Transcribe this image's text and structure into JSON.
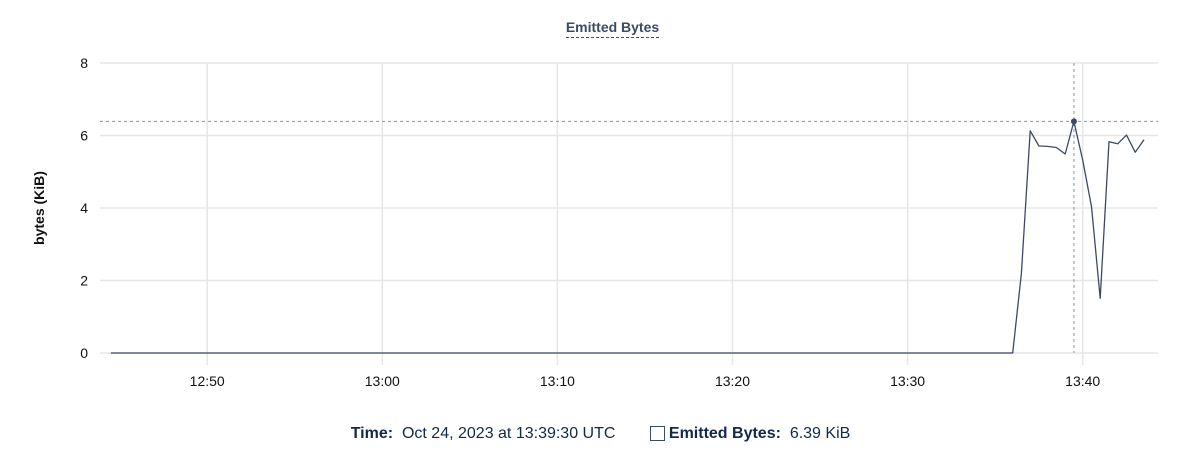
{
  "chart_data": {
    "type": "line",
    "title": "Emitted Bytes",
    "ylabel": "bytes (KiB)",
    "xlabel": "",
    "ylim": [
      0,
      8
    ],
    "yticks": [
      "0",
      "2",
      "4",
      "6",
      "8"
    ],
    "xticks": [
      "12:50",
      "13:00",
      "13:10",
      "13:20",
      "13:30",
      "13:40"
    ],
    "grid": true,
    "color": "#3d4a63",
    "series": [
      {
        "name": "Emitted Bytes",
        "points": [
          [
            "12:44:30",
            0
          ],
          [
            "13:36:00",
            0
          ],
          [
            "13:36:30",
            2.2
          ],
          [
            "13:37:00",
            6.13
          ],
          [
            "13:37:30",
            5.71
          ],
          [
            "13:38:00",
            5.7
          ],
          [
            "13:38:30",
            5.67
          ],
          [
            "13:39:00",
            5.49
          ],
          [
            "13:39:30",
            6.39
          ],
          [
            "13:40:00",
            5.32
          ],
          [
            "13:40:30",
            4.04
          ],
          [
            "13:41:00",
            1.51
          ],
          [
            "13:41:30",
            5.83
          ],
          [
            "13:42:00",
            5.77
          ],
          [
            "13:42:30",
            6.01
          ],
          [
            "13:43:00",
            5.54
          ],
          [
            "13:43:30",
            5.88
          ]
        ]
      }
    ],
    "hover": {
      "time": "13:39:30",
      "value": 6.39
    }
  },
  "legend": {
    "time_label": "Time:",
    "time_value": "Oct 24, 2023 at 13:39:30 UTC",
    "series_label": "Emitted Bytes:",
    "series_value": "6.39 KiB"
  }
}
